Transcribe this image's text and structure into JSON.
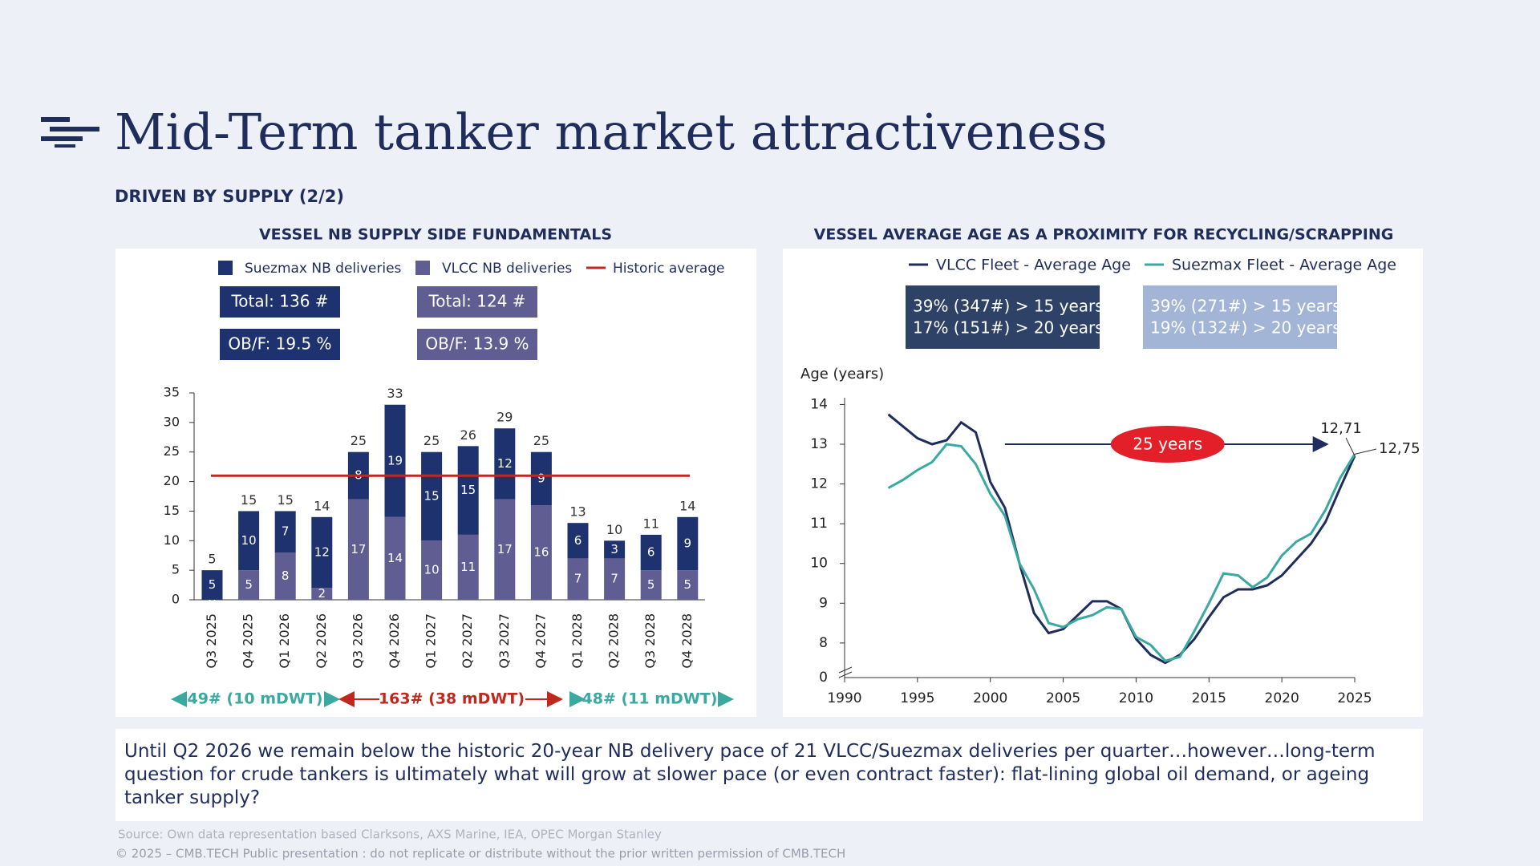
{
  "header": {
    "title": "Mid-Term tanker market attractiveness",
    "subtitle": "DRIVEN BY SUPPLY (2/2)"
  },
  "chart_data": [
    {
      "type": "bar",
      "stacked": true,
      "title": "VESSEL NB SUPPLY SIDE FUNDAMENTALS",
      "categories": [
        "Q3 2025",
        "Q4 2025",
        "Q1 2026",
        "Q2 2026",
        "Q3 2026",
        "Q4 2026",
        "Q1 2027",
        "Q2 2027",
        "Q3 2027",
        "Q4 2027",
        "Q1 2028",
        "Q2 2028",
        "Q3 2028",
        "Q4 2028"
      ],
      "series": [
        {
          "name": "Suezmax NB deliveries",
          "color": "#1f3270",
          "values": [
            5,
            10,
            7,
            12,
            8,
            19,
            15,
            15,
            12,
            9,
            6,
            3,
            6,
            9
          ]
        },
        {
          "name": "VLCC NB deliveries",
          "color": "#5f5d92",
          "values": [
            0,
            5,
            8,
            2,
            17,
            14,
            10,
            11,
            17,
            16,
            7,
            7,
            5,
            5
          ]
        }
      ],
      "total_labels": [
        "5",
        "15",
        "15",
        "14",
        "25",
        "33",
        "25",
        "26",
        "29",
        "25",
        "13",
        "10",
        "11",
        "14"
      ],
      "reference_line": {
        "name": "Historic average",
        "value": 21,
        "color": "#c0281e"
      },
      "boxes": [
        [
          "Total: 136 #",
          "OB/F: 19.5 %"
        ],
        [
          "Total: 124 #",
          "OB/F: 13.9 %"
        ]
      ],
      "ylim": [
        0,
        35
      ],
      "yticks": [
        0,
        5,
        10,
        15,
        20,
        25,
        30,
        35
      ],
      "period_labels": [
        "49# (10 mDWT)",
        "163# (38 mDWT)",
        "48# (11 mDWT)"
      ]
    },
    {
      "type": "line",
      "title": "VESSEL AVERAGE AGE AS A PROXIMITY FOR RECYCLING/SCRAPPING",
      "x": [
        1993,
        1994,
        1995,
        1996,
        1997,
        1998,
        1999,
        2000,
        2001,
        2002,
        2003,
        2004,
        2005,
        2006,
        2007,
        2008,
        2009,
        2010,
        2011,
        2012,
        2013,
        2014,
        2015,
        2016,
        2017,
        2018,
        2019,
        2020,
        2021,
        2022,
        2023,
        2024,
        2025
      ],
      "series": [
        {
          "name": "VLCC Fleet - Average Age",
          "color": "#1f2d5c",
          "end_label": "12,71",
          "values": [
            13.75,
            13.45,
            13.15,
            13.0,
            13.1,
            13.55,
            13.3,
            12.05,
            11.4,
            10.0,
            8.75,
            8.25,
            8.35,
            8.7,
            9.05,
            9.05,
            8.85,
            8.1,
            7.7,
            7.5,
            7.7,
            8.1,
            8.65,
            9.15,
            9.35,
            9.35,
            9.45,
            9.7,
            10.1,
            10.5,
            11.05,
            11.9,
            12.71
          ]
        },
        {
          "name": "Suezmax Fleet - Average Age",
          "color": "#3aa9a0",
          "end_label": "12,75",
          "values": [
            11.9,
            12.1,
            12.35,
            12.55,
            13.0,
            12.95,
            12.5,
            11.75,
            11.2,
            10.0,
            9.35,
            8.5,
            8.4,
            8.6,
            8.7,
            8.9,
            8.85,
            8.15,
            7.95,
            7.55,
            7.65,
            8.3,
            9.0,
            9.75,
            9.7,
            9.4,
            9.65,
            10.2,
            10.55,
            10.75,
            11.35,
            12.15,
            12.75
          ]
        }
      ],
      "stat_boxes": [
        {
          "color": "#2d4266",
          "lines": [
            "39% (347#) > 15 years",
            "17% (151#) > 20 years"
          ]
        },
        {
          "color": "#a3b5d6",
          "lines": [
            "39% (271#) > 15 years",
            "19% (132#) > 20 years"
          ]
        }
      ],
      "ylabel": "Age (years)",
      "xlim": [
        1990,
        2025
      ],
      "xticks": [
        1990,
        1995,
        2000,
        2005,
        2010,
        2015,
        2020,
        2025
      ],
      "ylim": [
        7.13,
        14.17
      ],
      "yticks": [
        8,
        9,
        10,
        11,
        12,
        13,
        14
      ],
      "axis_break_label": "0",
      "annotation": {
        "text": "25 years",
        "x_from": 2001,
        "x_to": 2023,
        "y": 13,
        "color": "#e3202a"
      }
    }
  ],
  "note": "Until Q2 2026 we remain below the historic 20-year NB delivery pace of 21 VLCC/Suezmax deliveries per quarter…however…long-term question for crude tankers is ultimately what will grow at slower pace (or even contract faster): flat-lining global oil demand, or ageing tanker supply?",
  "source": "Source:  Own data representation based Clarksons, AXS Marine, IEA, OPEC Morgan Stanley",
  "copyright": "© 2025 – CMB.TECH Public presentation : do not replicate or distribute without the prior written permission of CMB.TECH"
}
